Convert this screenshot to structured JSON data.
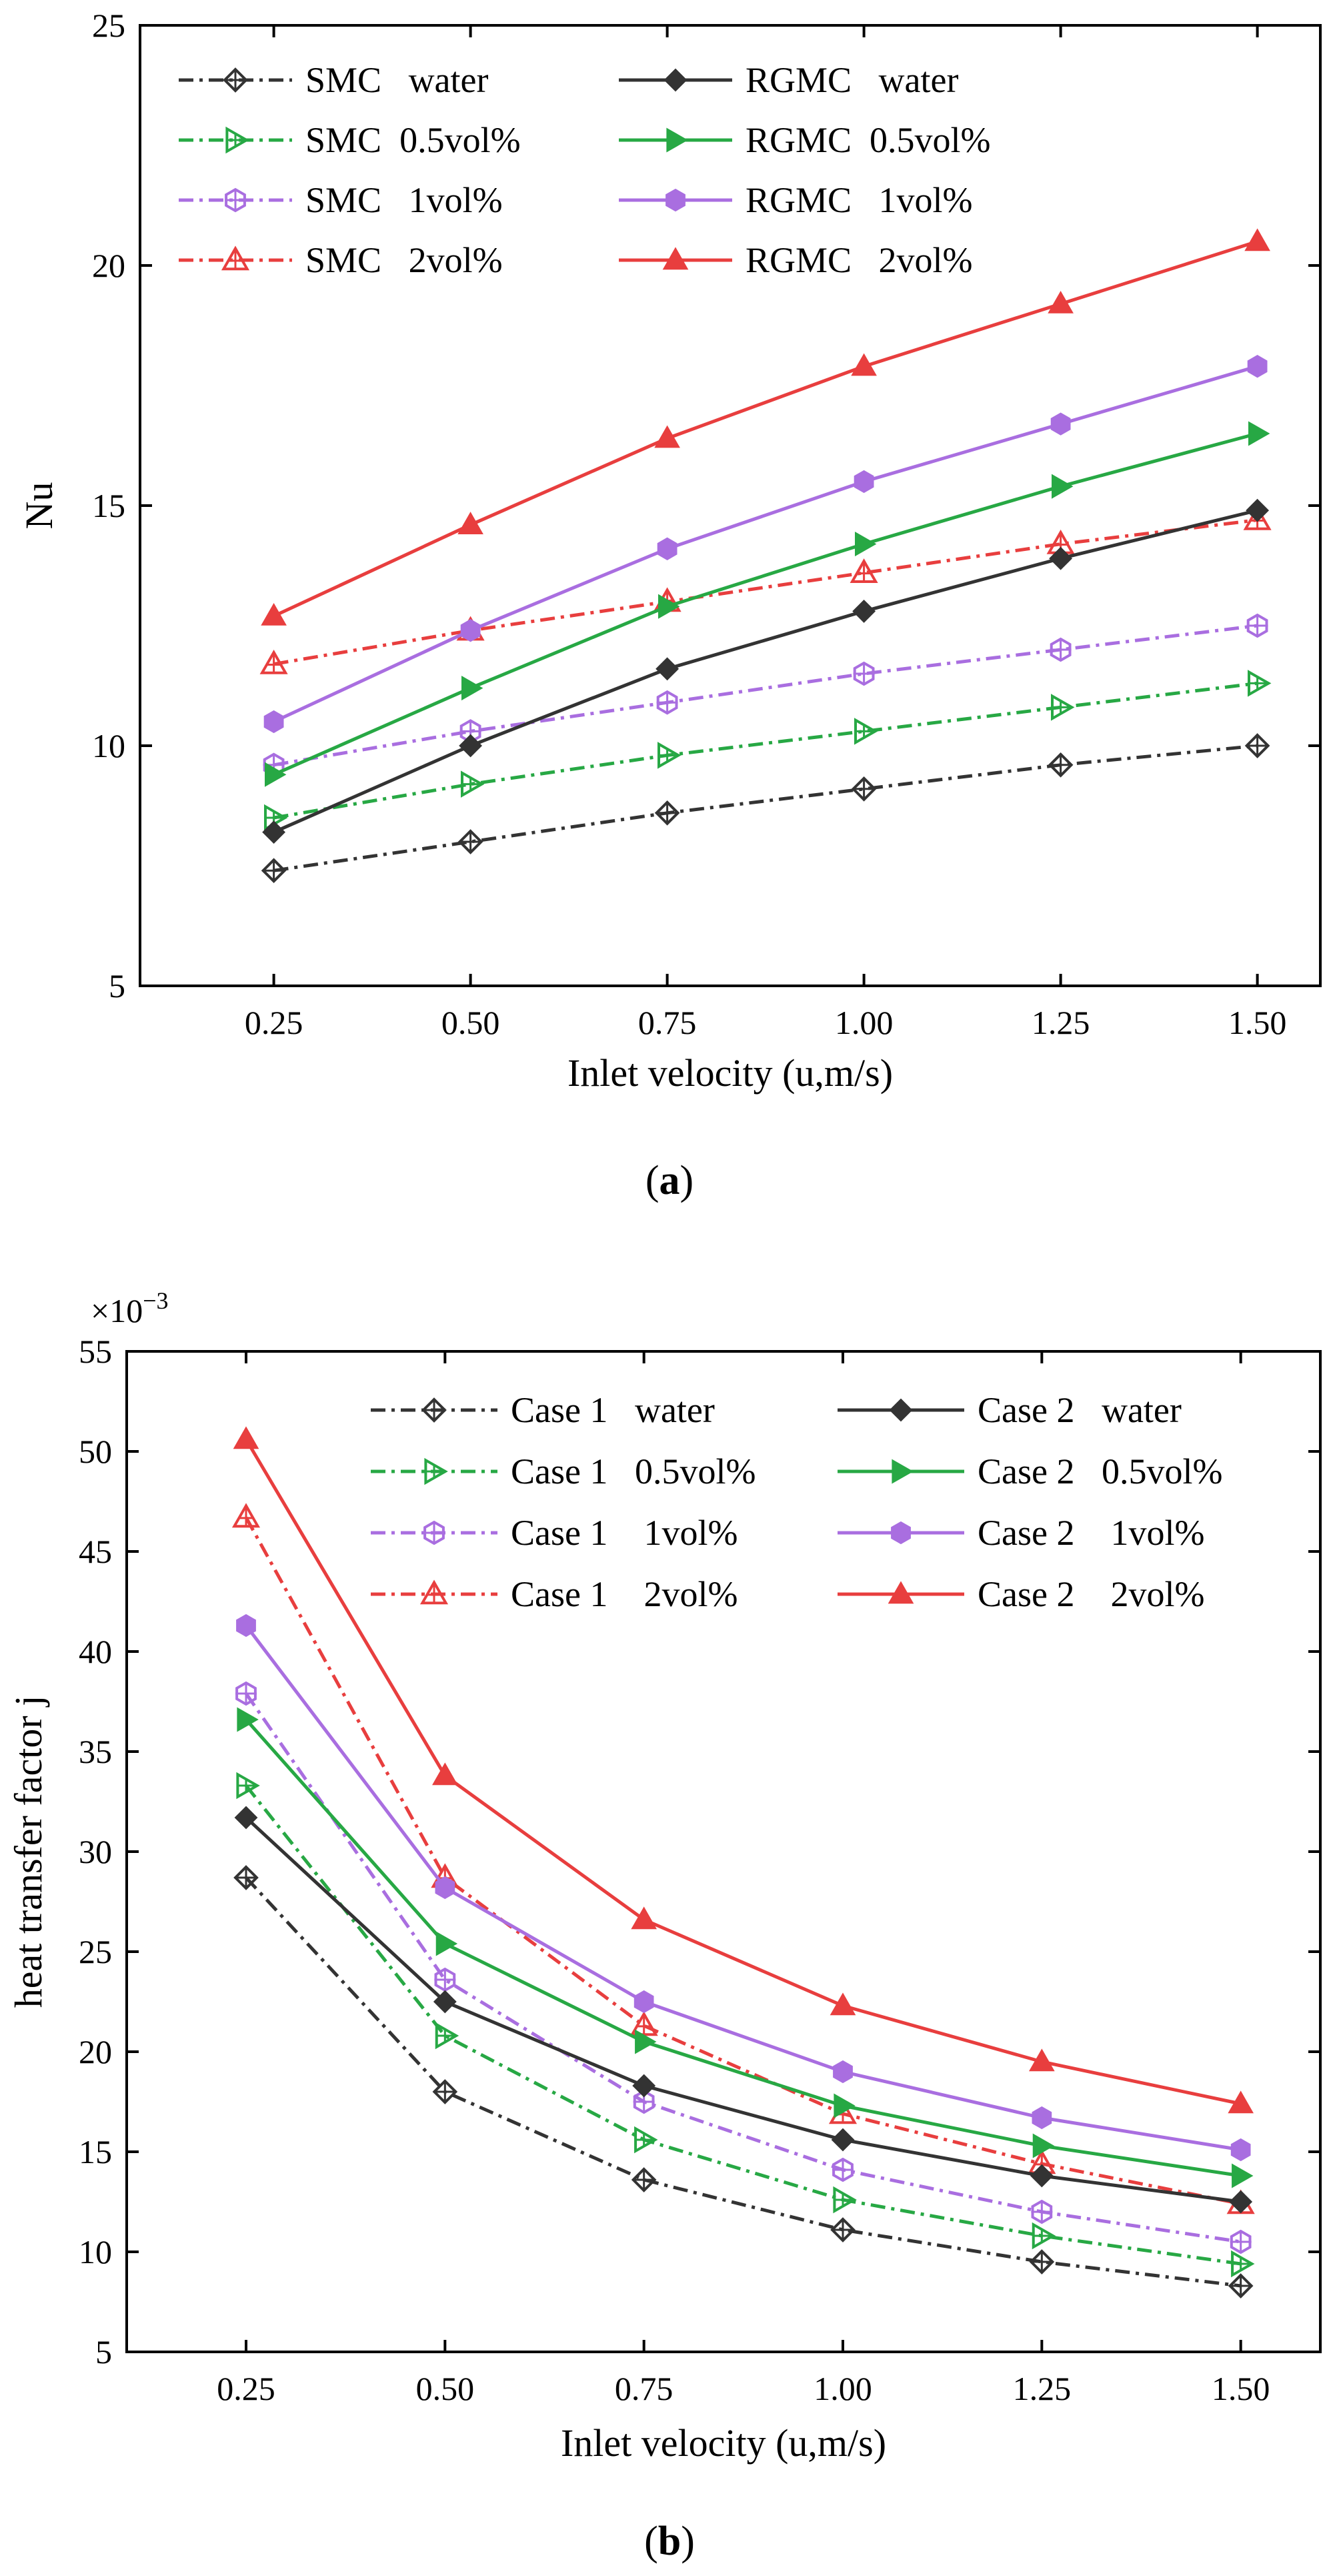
{
  "chart_data": [
    {
      "type": "line",
      "panel": "a",
      "caption_open": "(",
      "caption_letter": "a",
      "caption_close": ")",
      "xlabel": "Inlet velocity (u,m/s)",
      "ylabel": "Nu",
      "multiplier": "",
      "x": [
        0.25,
        0.5,
        0.75,
        1.0,
        1.25,
        1.5
      ],
      "xticks": [
        "0.25",
        "0.50",
        "0.75",
        "1.00",
        "1.25",
        "1.50"
      ],
      "xlim": [
        0.08,
        1.58
      ],
      "yticks": [
        "5",
        "10",
        "15",
        "20",
        "25"
      ],
      "ytick_values": [
        5,
        10,
        15,
        20,
        25
      ],
      "ylim": [
        5,
        25
      ],
      "series": [
        {
          "name": "SMC   water",
          "color": "#333333",
          "dashed": true,
          "marker": "diamond",
          "values": [
            7.4,
            8.0,
            8.6,
            9.1,
            9.6,
            10.0
          ]
        },
        {
          "name": "SMC  0.5vol%",
          "color": "#27a844",
          "dashed": true,
          "marker": "triangle-right",
          "values": [
            8.5,
            9.2,
            9.8,
            10.3,
            10.8,
            11.3
          ]
        },
        {
          "name": "SMC   1vol%",
          "color": "#a96ee0",
          "dashed": true,
          "marker": "hexagon",
          "values": [
            9.6,
            10.3,
            10.9,
            11.5,
            12.0,
            12.5
          ]
        },
        {
          "name": "SMC   2vol%",
          "color": "#e83e3e",
          "dashed": true,
          "marker": "triangle-up",
          "values": [
            11.7,
            12.4,
            13.0,
            13.6,
            14.2,
            14.7
          ]
        },
        {
          "name": "RGMC   water",
          "color": "#333333",
          "dashed": false,
          "marker": "diamond",
          "values": [
            8.2,
            10.0,
            11.6,
            12.8,
            13.9,
            14.9
          ]
        },
        {
          "name": "RGMC  0.5vol%",
          "color": "#27a844",
          "dashed": false,
          "marker": "triangle-right",
          "values": [
            9.4,
            11.2,
            12.9,
            14.2,
            15.4,
            16.5
          ]
        },
        {
          "name": "RGMC   1vol%",
          "color": "#a96ee0",
          "dashed": false,
          "marker": "hexagon",
          "values": [
            10.5,
            12.4,
            14.1,
            15.5,
            16.7,
            17.9
          ]
        },
        {
          "name": "RGMC   2vol%",
          "color": "#e83e3e",
          "dashed": false,
          "marker": "triangle-up",
          "values": [
            12.7,
            14.6,
            16.4,
            17.9,
            19.2,
            20.5
          ]
        }
      ]
    },
    {
      "type": "line",
      "panel": "b",
      "caption_open": "(",
      "caption_letter": "b",
      "caption_close": ")",
      "xlabel": "Inlet velocity (u,m/s)",
      "ylabel": "heat transfer factor j",
      "multiplier": "×10",
      "multiplier_exp": "−3",
      "x": [
        0.25,
        0.5,
        0.75,
        1.0,
        1.25,
        1.5
      ],
      "xticks": [
        "0.25",
        "0.50",
        "0.75",
        "1.00",
        "1.25",
        "1.50"
      ],
      "xlim": [
        0.1,
        1.6
      ],
      "yticks": [
        "5",
        "10",
        "15",
        "20",
        "25",
        "30",
        "35",
        "40",
        "45",
        "50",
        "55"
      ],
      "ytick_values": [
        5,
        10,
        15,
        20,
        25,
        30,
        35,
        40,
        45,
        50,
        55
      ],
      "ylim": [
        5,
        55
      ],
      "series": [
        {
          "name": "Case 1   water",
          "color": "#333333",
          "dashed": true,
          "marker": "diamond",
          "values": [
            28.7,
            18.0,
            13.6,
            11.1,
            9.5,
            8.3
          ]
        },
        {
          "name": "Case 1   0.5vol%",
          "color": "#27a844",
          "dashed": true,
          "marker": "triangle-right",
          "values": [
            33.3,
            20.8,
            15.6,
            12.6,
            10.8,
            9.4
          ]
        },
        {
          "name": "Case 1    1vol%",
          "color": "#a96ee0",
          "dashed": true,
          "marker": "hexagon",
          "values": [
            37.9,
            23.6,
            17.5,
            14.1,
            12.0,
            10.5
          ]
        },
        {
          "name": "Case 1    2vol%",
          "color": "#e83e3e",
          "dashed": true,
          "marker": "triangle-up",
          "values": [
            46.7,
            28.7,
            21.3,
            16.9,
            14.4,
            12.4
          ]
        },
        {
          "name": "Case 2   water",
          "color": "#333333",
          "dashed": false,
          "marker": "diamond",
          "values": [
            31.7,
            22.5,
            18.3,
            15.6,
            13.8,
            12.5
          ]
        },
        {
          "name": "Case 2   0.5vol%",
          "color": "#27a844",
          "dashed": false,
          "marker": "triangle-right",
          "values": [
            36.6,
            25.4,
            20.5,
            17.3,
            15.3,
            13.8
          ]
        },
        {
          "name": "Case 2    1vol%",
          "color": "#a96ee0",
          "dashed": false,
          "marker": "hexagon",
          "values": [
            41.3,
            28.2,
            22.5,
            19.0,
            16.7,
            15.1
          ]
        },
        {
          "name": "Case 2    2vol%",
          "color": "#e83e3e",
          "dashed": false,
          "marker": "triangle-up",
          "values": [
            50.6,
            33.8,
            26.6,
            22.3,
            19.5,
            17.4
          ]
        }
      ]
    }
  ]
}
